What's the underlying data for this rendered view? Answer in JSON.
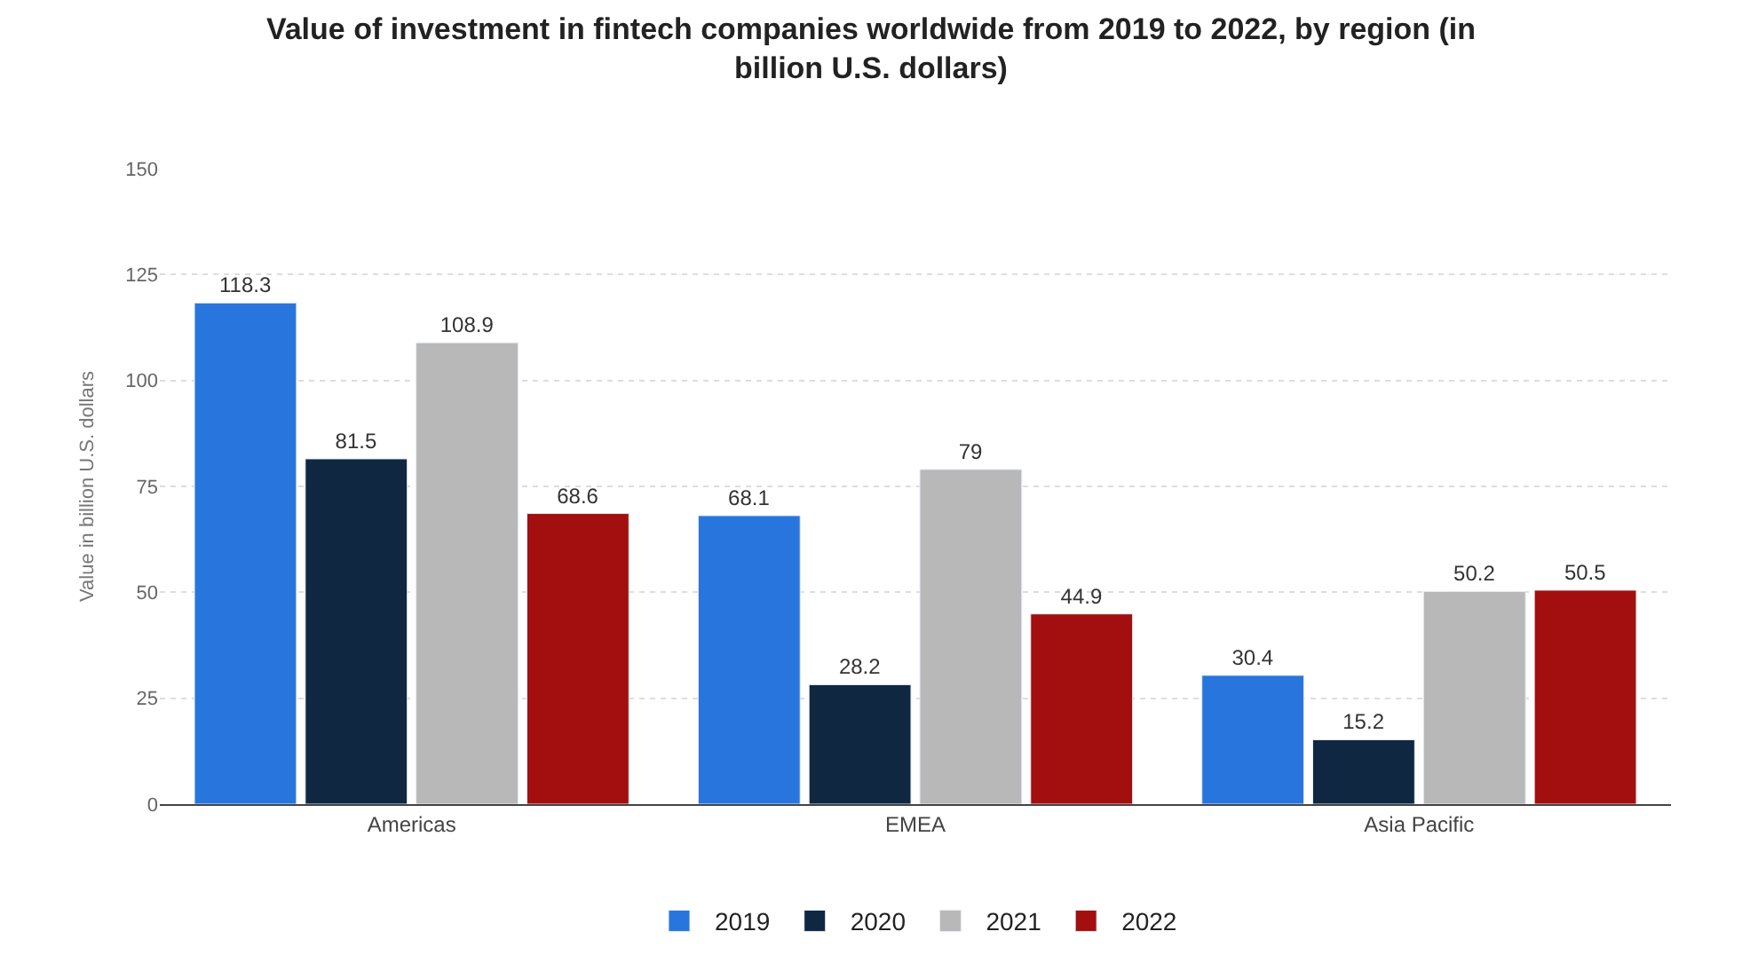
{
  "chart_data": {
    "type": "bar",
    "title": "Value of investment in fintech companies worldwide from 2019 to 2022, by region (in billion U.S. dollars)",
    "ylabel": "Value in billion U.S. dollars",
    "categories": [
      "Americas",
      "EMEA",
      "Asia Pacific"
    ],
    "series": [
      {
        "name": "2019",
        "color": "#2876dd",
        "values": [
          118.3,
          68.1,
          30.4
        ]
      },
      {
        "name": "2020",
        "color": "#0f2741",
        "values": [
          81.5,
          28.2,
          15.2
        ]
      },
      {
        "name": "2021",
        "color": "#b8b8b8",
        "values": [
          108.9,
          79,
          50.2
        ]
      },
      {
        "name": "2022",
        "color": "#a30e0e",
        "values": [
          68.6,
          44.9,
          50.5
        ]
      }
    ],
    "ylim": [
      0,
      150
    ],
    "yticks": [
      0,
      25,
      50,
      75,
      100,
      125,
      150
    ],
    "grid": "y",
    "legend": "bottom",
    "data_labels": true
  }
}
